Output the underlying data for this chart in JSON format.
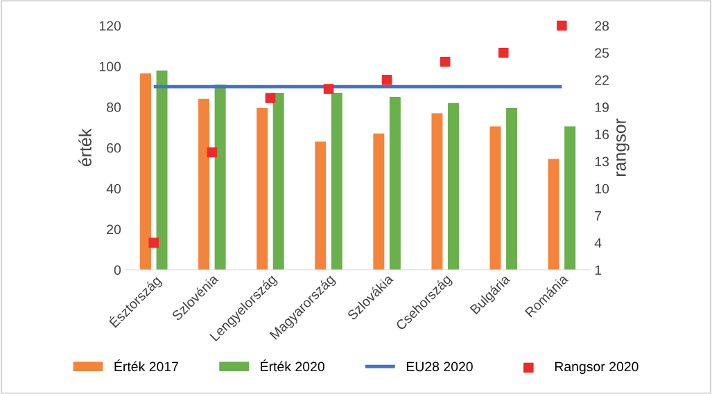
{
  "chart_data": {
    "type": "bar",
    "ylabel": "érték",
    "y2label": "rangsor",
    "categories": [
      "Észtország",
      "Szlovénia",
      "Lengyelország",
      "Magyarország",
      "Szlovákia",
      "Csehország",
      "Bulgária",
      "Románia"
    ],
    "series": [
      {
        "name": "Érték 2017",
        "color": "#f4843c",
        "values": [
          96.5,
          84,
          79.5,
          63,
          67,
          77,
          70.5,
          54.5
        ]
      },
      {
        "name": "Érték 2020",
        "color": "#6ab04c",
        "values": [
          98,
          91,
          87,
          87,
          85,
          82,
          79.5,
          70.5
        ]
      },
      {
        "name": "EU28 2020",
        "type": "line",
        "color": "#4472c4",
        "values": [
          90,
          90,
          90,
          90,
          90,
          90,
          90,
          90
        ]
      },
      {
        "name": "Rangsor 2020",
        "type": "scatter",
        "axis": "y2",
        "marker": "square",
        "color": "#ee2a2a",
        "values": [
          4,
          14,
          20,
          21,
          22,
          24,
          25,
          28
        ]
      }
    ],
    "ylim": [
      0,
      120
    ],
    "yticks": [
      0,
      20,
      40,
      60,
      80,
      100,
      120
    ],
    "y2lim": [
      1,
      28
    ],
    "y2ticks": [
      1,
      4,
      7,
      10,
      13,
      16,
      19,
      22,
      25,
      28
    ],
    "grid": false,
    "legend": "bottom"
  }
}
